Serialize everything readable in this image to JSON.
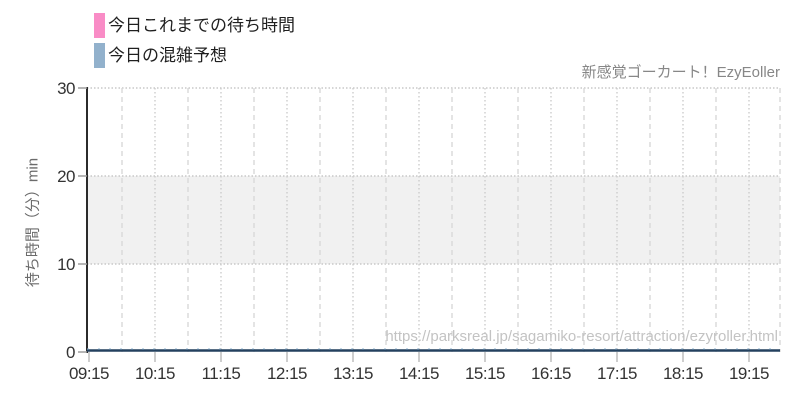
{
  "legend": {
    "items": [
      {
        "label": "今日これまでの待ち時間",
        "color": "#f98cc6"
      },
      {
        "label": "今日の混雑予想",
        "color": "#92b1cc"
      }
    ]
  },
  "subtitle": "新感覚ゴーカート！EzyEoller",
  "watermark": "https://parksreal.jp/sagamiko-resort/attraction/ezyroller.html",
  "chart_data": {
    "type": "line",
    "title": "",
    "xlabel": "",
    "ylabel": "待ち時間（分）min",
    "categories": [
      "09:15",
      "10:15",
      "11:15",
      "12:15",
      "13:15",
      "14:15",
      "15:15",
      "16:15",
      "17:15",
      "18:15",
      "19:15"
    ],
    "yticks": [
      0,
      10,
      20,
      30
    ],
    "ylim": [
      0,
      30
    ],
    "grid": {
      "horizontal": "dotted",
      "vertical_major": "dotted",
      "vertical_minor": "dashed"
    },
    "band": {
      "from": 10,
      "to": 20,
      "color": "#f1f1f1"
    },
    "legend_position": "top-left",
    "series": [
      {
        "name": "今日これまでの待ち時間",
        "legend_color": "#f98cc6",
        "plot_color": "#f98cc6",
        "values": [
          0,
          0,
          0,
          0,
          0,
          0,
          0,
          0,
          0,
          0,
          0
        ]
      },
      {
        "name": "今日の混雑予想",
        "legend_color": "#92b1cc",
        "plot_color": "#24415f",
        "dash_overlay_color": "#8fb3cf",
        "values": [
          0,
          0,
          0,
          0,
          0,
          0,
          0,
          0,
          0,
          0,
          0
        ]
      }
    ]
  },
  "colors": {
    "band_fill": "#f1f1f1",
    "h_gridline": "#c8c8c8",
    "v_gridline_major": "#cccccc",
    "v_gridline_minor": "#d9d9d9",
    "axis_line": "#2b2b2b",
    "x_tick_mark": "#bdbdbd",
    "y_tick_mark": "#9e9e9e",
    "tick_label": "#333333"
  }
}
